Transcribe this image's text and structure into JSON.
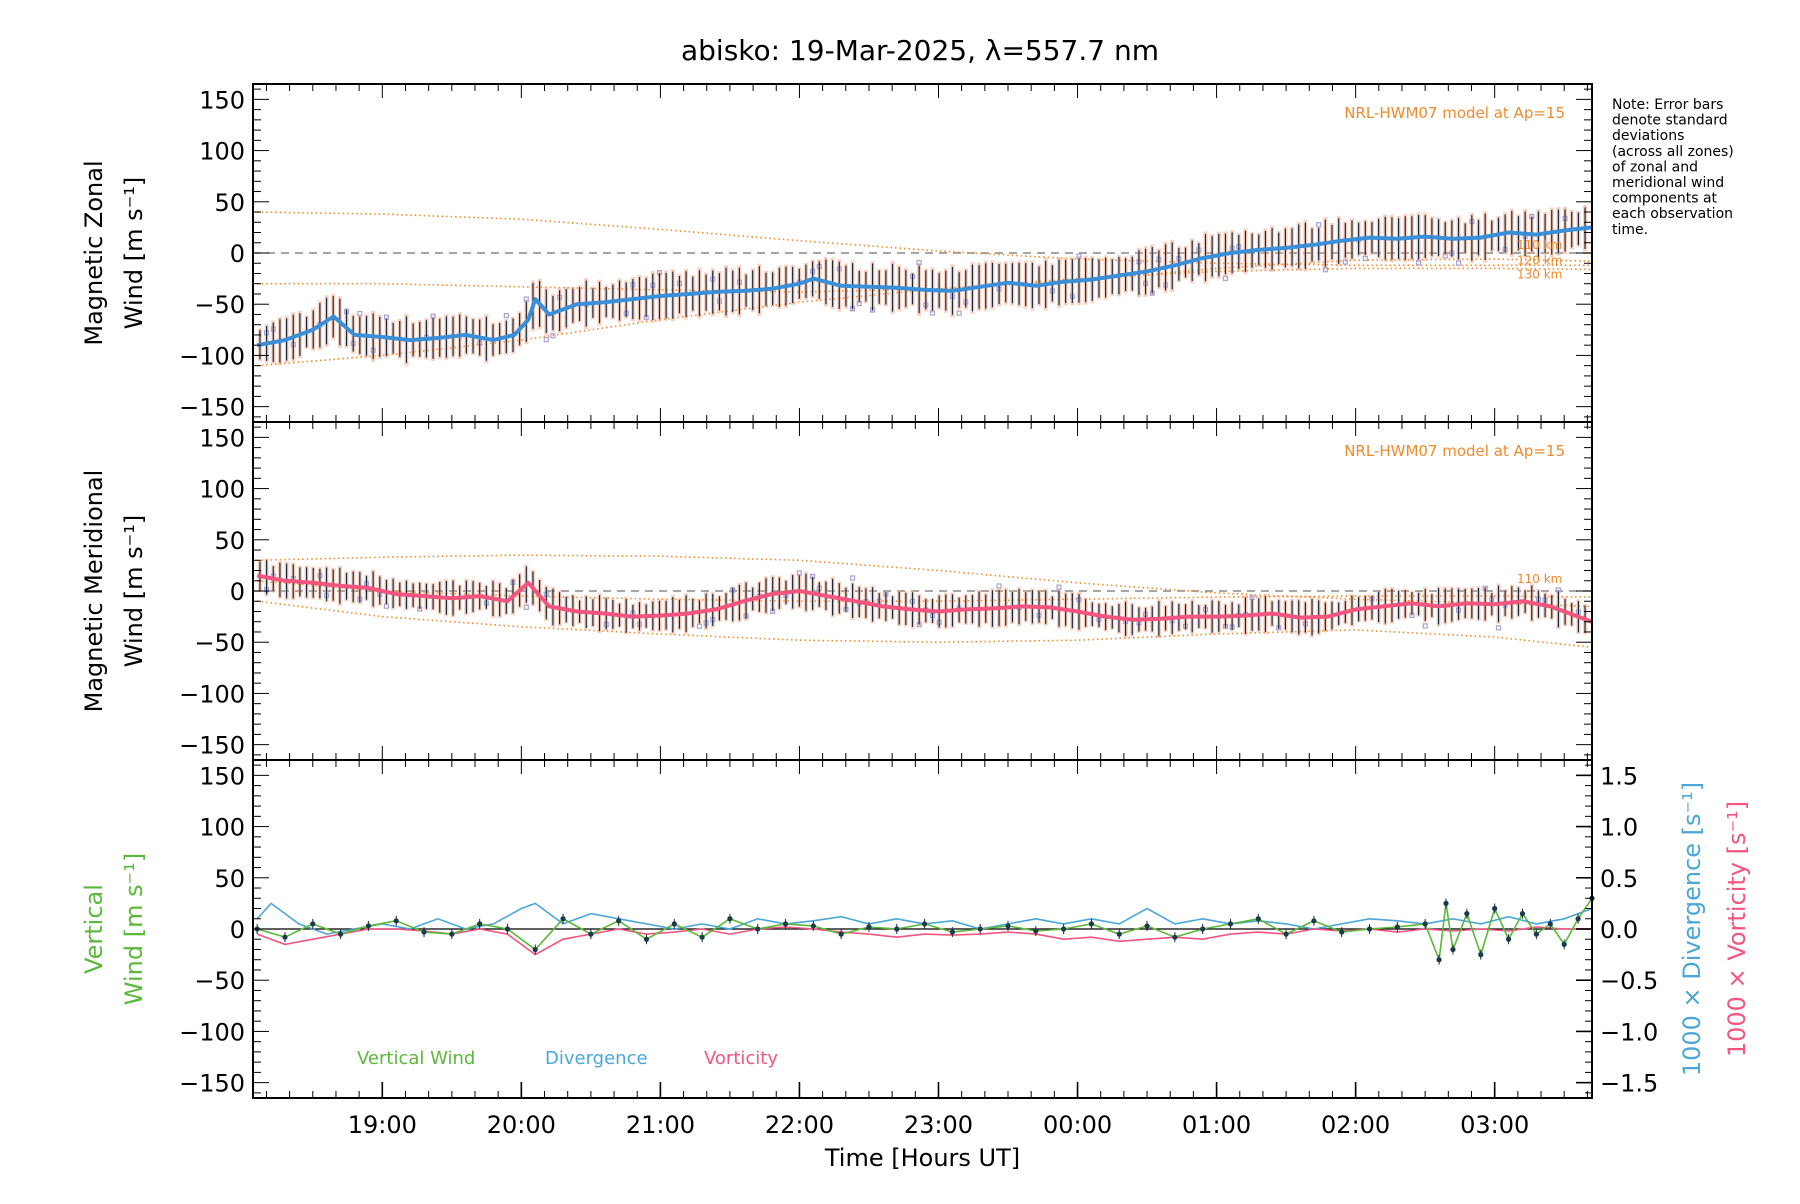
{
  "title": "abisko: 19-Mar-2025, λ=557.7 nm",
  "note_lines": [
    "Note: Error bars",
    "denote standard",
    "deviations",
    "(across all zones)",
    "of zonal and",
    "meridional wind",
    "components at",
    "each observation",
    "time."
  ],
  "colors": {
    "zonal": "#3a8fd9",
    "meridional": "#f2557f",
    "vertical": "#5bb83a",
    "divergence": "#4aa7d8",
    "vorticity": "#f2557f",
    "model": "#f08a2c",
    "zone_points": "#a9a3d6",
    "error_bar": "#1b2a3a",
    "zero_line": "#888888"
  },
  "chart_data": [
    {
      "type": "line",
      "id": "zonal",
      "ylabel_lines": [
        "Magnetic Zonal",
        "Wind [m s⁻¹]"
      ],
      "xlabel": "",
      "ylim": [
        -165,
        165
      ],
      "yticks": [
        -150,
        -100,
        -50,
        0,
        50,
        100,
        150
      ],
      "yticklabels": [
        "−150",
        "−100",
        "−50",
        "0",
        "50",
        "100",
        "150"
      ],
      "annotation": "NRL-HWM07 model at Ap=15",
      "model_labels": [
        "110 km",
        "120 km",
        "130 km"
      ],
      "series": [
        {
          "role": "wind",
          "x": [
            18.1,
            18.3,
            18.5,
            18.65,
            18.8,
            19.0,
            19.2,
            19.4,
            19.6,
            19.8,
            19.95,
            20.05,
            20.1,
            20.2,
            20.4,
            20.6,
            20.8,
            21.0,
            21.2,
            21.4,
            21.6,
            21.8,
            22.0,
            22.1,
            22.3,
            22.5,
            22.7,
            22.9,
            23.1,
            23.3,
            23.5,
            23.7,
            23.9,
            24.1,
            24.3,
            24.5,
            24.7,
            24.9,
            25.1,
            25.3,
            25.5,
            25.7,
            25.9,
            26.1,
            26.3,
            26.5,
            26.7,
            26.9,
            27.1,
            27.3,
            27.5,
            27.7
          ],
          "y": [
            -90,
            -85,
            -75,
            -62,
            -80,
            -82,
            -85,
            -83,
            -80,
            -85,
            -80,
            -65,
            -45,
            -60,
            -50,
            -48,
            -45,
            -42,
            -40,
            -38,
            -37,
            -35,
            -30,
            -25,
            -32,
            -33,
            -34,
            -36,
            -37,
            -33,
            -29,
            -32,
            -28,
            -26,
            -22,
            -18,
            -12,
            -5,
            0,
            3,
            5,
            8,
            12,
            15,
            14,
            16,
            14,
            15,
            20,
            18,
            22,
            25
          ]
        },
        {
          "role": "model",
          "x": [
            18.1,
            19.0,
            20.0,
            21.0,
            22.0,
            23.0,
            24.0,
            25.0,
            26.0,
            27.0,
            27.7
          ],
          "y": [
            40,
            38,
            33,
            23,
            12,
            2,
            -6,
            -10,
            -12,
            -12,
            -12
          ]
        },
        {
          "role": "model",
          "x": [
            18.1,
            19.0,
            20.0,
            21.0,
            22.0,
            23.0,
            24.0,
            25.0,
            26.0,
            27.0,
            27.7
          ],
          "y": [
            -30,
            -30,
            -33,
            -36,
            -38,
            -35,
            -27,
            -15,
            -7,
            -6,
            -8
          ]
        },
        {
          "role": "model",
          "x": [
            18.1,
            19.0,
            20.0,
            21.0,
            22.0,
            23.0,
            24.0,
            25.0,
            26.0,
            27.0,
            27.7
          ],
          "y": [
            -110,
            -100,
            -85,
            -65,
            -48,
            -35,
            -25,
            -18,
            -15,
            -15,
            -16
          ]
        }
      ]
    },
    {
      "type": "line",
      "id": "meridional",
      "ylabel_lines": [
        "Magnetic Meridional",
        "Wind [m s⁻¹]"
      ],
      "xlabel": "",
      "ylim": [
        -165,
        165
      ],
      "yticks": [
        -150,
        -100,
        -50,
        0,
        50,
        100,
        150
      ],
      "yticklabels": [
        "−150",
        "−100",
        "−50",
        "0",
        "50",
        "100",
        "150"
      ],
      "annotation": "NRL-HWM07 model at Ap=15",
      "model_labels": [
        "110 km"
      ],
      "series": [
        {
          "role": "wind",
          "x": [
            18.1,
            18.3,
            18.5,
            18.7,
            18.9,
            19.1,
            19.3,
            19.5,
            19.7,
            19.9,
            20.05,
            20.2,
            20.4,
            20.6,
            20.8,
            21.0,
            21.2,
            21.4,
            21.6,
            21.8,
            22.0,
            22.2,
            22.4,
            22.6,
            22.8,
            23.0,
            23.2,
            23.4,
            23.6,
            23.8,
            24.0,
            24.2,
            24.4,
            24.6,
            24.8,
            25.0,
            25.2,
            25.4,
            25.6,
            25.8,
            26.0,
            26.2,
            26.4,
            26.6,
            26.8,
            27.0,
            27.2,
            27.4,
            27.7
          ],
          "y": [
            15,
            10,
            8,
            5,
            3,
            -3,
            -5,
            -7,
            -5,
            -10,
            8,
            -15,
            -20,
            -22,
            -25,
            -24,
            -22,
            -18,
            -10,
            -3,
            0,
            -5,
            -10,
            -15,
            -18,
            -20,
            -18,
            -17,
            -15,
            -16,
            -20,
            -25,
            -28,
            -27,
            -25,
            -25,
            -24,
            -22,
            -26,
            -25,
            -18,
            -15,
            -12,
            -15,
            -12,
            -13,
            -10,
            -15,
            -30
          ]
        },
        {
          "role": "model",
          "x": [
            18.1,
            19.0,
            20.0,
            21.0,
            22.0,
            23.0,
            24.0,
            25.0,
            26.0,
            27.0,
            27.7
          ],
          "y": [
            30,
            33,
            35,
            34,
            30,
            20,
            8,
            -2,
            -8,
            -12,
            -15
          ]
        },
        {
          "role": "model",
          "x": [
            18.1,
            19.0,
            20.0,
            21.0,
            22.0,
            23.0,
            24.0,
            25.0,
            26.0,
            27.0,
            27.7
          ],
          "y": [
            10,
            0,
            -5,
            -8,
            -10,
            -10,
            -8,
            -6,
            -5,
            -5,
            -6
          ]
        },
        {
          "role": "model",
          "x": [
            18.1,
            19.0,
            20.0,
            21.0,
            22.0,
            23.0,
            24.0,
            25.0,
            26.0,
            27.0,
            27.7
          ],
          "y": [
            -10,
            -25,
            -35,
            -42,
            -48,
            -50,
            -48,
            -42,
            -38,
            -45,
            -55
          ]
        }
      ]
    },
    {
      "type": "line",
      "id": "vertical",
      "ylabel_lines": [
        "Vertical",
        "Wind [m s⁻¹]"
      ],
      "xlabel": "Time [Hours UT]",
      "ylim": [
        -165,
        165
      ],
      "yticks": [
        -150,
        -100,
        -50,
        0,
        50,
        100,
        150
      ],
      "yticklabels": [
        "−150",
        "−100",
        "−50",
        "0",
        "50",
        "100",
        "150"
      ],
      "xlim": [
        18.07,
        27.7
      ],
      "xticks": [
        19,
        20,
        21,
        22,
        23,
        24,
        25,
        26,
        27
      ],
      "xticklabels": [
        "19:00",
        "20:00",
        "21:00",
        "22:00",
        "23:00",
        "00:00",
        "01:00",
        "02:00",
        "03:00"
      ],
      "y2lim": [
        -1.65,
        1.65
      ],
      "y2ticks": [
        -1.5,
        -1.0,
        -0.5,
        0.0,
        0.5,
        1.0,
        1.5
      ],
      "y2ticklabels": [
        "−1.5",
        "−1.0",
        "−0.5",
        "0.0",
        "0.5",
        "1.0",
        "1.5"
      ],
      "y2label_divergence": "1000 × Divergence [s⁻¹]",
      "y2label_vorticity": "1000 × Vorticity [s⁻¹]",
      "legend": [
        "Vertical Wind",
        "Divergence",
        "Vorticity"
      ],
      "series": [
        {
          "name": "Vertical Wind",
          "axis": "left",
          "x": [
            18.1,
            18.3,
            18.5,
            18.7,
            18.9,
            19.1,
            19.3,
            19.5,
            19.7,
            19.9,
            20.1,
            20.3,
            20.5,
            20.7,
            20.9,
            21.1,
            21.3,
            21.5,
            21.7,
            21.9,
            22.1,
            22.3,
            22.5,
            22.7,
            22.9,
            23.1,
            23.3,
            23.5,
            23.7,
            23.9,
            24.1,
            24.3,
            24.5,
            24.7,
            24.9,
            25.1,
            25.3,
            25.5,
            25.7,
            25.9,
            26.1,
            26.3,
            26.5,
            26.6,
            26.65,
            26.7,
            26.8,
            26.9,
            27.0,
            27.1,
            27.2,
            27.3,
            27.4,
            27.5,
            27.6,
            27.7
          ],
          "y": [
            0,
            -8,
            5,
            -5,
            3,
            8,
            -3,
            -5,
            5,
            0,
            -20,
            10,
            -5,
            8,
            -10,
            5,
            -8,
            10,
            0,
            5,
            3,
            -5,
            2,
            0,
            5,
            -3,
            0,
            3,
            -2,
            0,
            5,
            -5,
            3,
            -8,
            0,
            5,
            10,
            -5,
            8,
            -3,
            0,
            2,
            5,
            -30,
            25,
            -20,
            15,
            -25,
            20,
            -10,
            15,
            -5,
            5,
            -15,
            10,
            30
          ]
        },
        {
          "name": "Divergence",
          "axis": "right",
          "x": [
            18.1,
            18.2,
            18.4,
            18.6,
            18.8,
            19.0,
            19.2,
            19.4,
            19.6,
            19.8,
            20.0,
            20.1,
            20.3,
            20.5,
            20.7,
            20.9,
            21.1,
            21.3,
            21.5,
            21.7,
            21.9,
            22.1,
            22.3,
            22.5,
            22.7,
            22.9,
            23.1,
            23.3,
            23.5,
            23.7,
            23.9,
            24.1,
            24.3,
            24.5,
            24.7,
            24.9,
            25.1,
            25.3,
            25.5,
            25.7,
            25.9,
            26.1,
            26.3,
            26.5,
            26.7,
            26.9,
            27.1,
            27.3,
            27.5,
            27.7
          ],
          "y": [
            0.1,
            0.25,
            0.05,
            -0.05,
            0.0,
            0.05,
            0.0,
            0.1,
            0.0,
            0.05,
            0.2,
            0.25,
            0.05,
            0.15,
            0.1,
            0.05,
            0.0,
            0.05,
            0.0,
            0.1,
            0.05,
            0.08,
            0.12,
            0.05,
            0.1,
            0.05,
            0.08,
            0.0,
            0.05,
            0.1,
            0.05,
            0.1,
            0.05,
            0.2,
            0.05,
            0.1,
            0.05,
            0.08,
            0.05,
            0.0,
            0.05,
            0.1,
            0.08,
            0.05,
            0.1,
            0.05,
            0.12,
            0.05,
            0.1,
            0.2
          ]
        },
        {
          "name": "Vorticity",
          "axis": "right",
          "x": [
            18.1,
            18.3,
            18.5,
            18.7,
            18.9,
            19.1,
            19.3,
            19.5,
            19.7,
            19.9,
            20.1,
            20.3,
            20.5,
            20.7,
            20.9,
            21.1,
            21.3,
            21.5,
            21.7,
            21.9,
            22.1,
            22.3,
            22.5,
            22.7,
            22.9,
            23.1,
            23.3,
            23.5,
            23.7,
            23.9,
            24.1,
            24.3,
            24.5,
            24.7,
            24.9,
            25.1,
            25.3,
            25.5,
            25.7,
            25.9,
            26.1,
            26.3,
            26.5,
            26.7,
            26.9,
            27.1,
            27.3,
            27.5,
            27.7
          ],
          "y": [
            -0.05,
            -0.15,
            -0.1,
            -0.05,
            0.0,
            0.0,
            -0.02,
            -0.05,
            0.0,
            -0.05,
            -0.25,
            -0.1,
            -0.05,
            0.0,
            -0.05,
            -0.03,
            0.0,
            -0.05,
            0.0,
            0.02,
            0.0,
            -0.03,
            -0.05,
            -0.08,
            -0.05,
            -0.06,
            -0.05,
            -0.03,
            -0.05,
            -0.1,
            -0.08,
            -0.12,
            -0.1,
            -0.08,
            -0.1,
            -0.05,
            -0.03,
            -0.05,
            0.0,
            -0.02,
            0.0,
            -0.03,
            0.0,
            -0.02,
            0.0,
            -0.02,
            0.02,
            0.0,
            0.0
          ]
        }
      ]
    }
  ]
}
